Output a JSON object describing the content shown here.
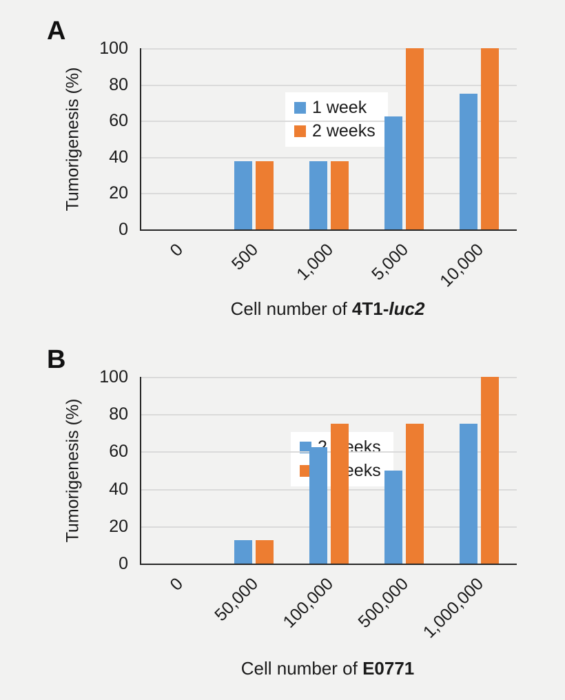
{
  "page": {
    "background_color": "#f2f2f1",
    "figure_type": "two-panel bar chart figure"
  },
  "colors": {
    "series_blue": "#5B9BD5",
    "series_orange": "#ED7D31",
    "gridline": "#dadada",
    "axis": "#262626",
    "legend_background": "#ffffff",
    "text": "#1a1a1a"
  },
  "chart_data": [
    {
      "type": "bar",
      "panel_label": "A",
      "categories": [
        "0",
        "500",
        "1,000",
        "5,000",
        "10,000"
      ],
      "series": [
        {
          "name": "1 week",
          "color": "#5B9BD5",
          "values": [
            0,
            37.5,
            37.5,
            62.5,
            75
          ]
        },
        {
          "name": "2 weeks",
          "color": "#ED7D31",
          "values": [
            0,
            37.5,
            37.5,
            100,
            100
          ]
        }
      ],
      "title": "",
      "ylabel": "Tumorigenesis (%)",
      "xlabel_parts": {
        "regular": "Cell number of ",
        "bold": "4T1-",
        "bold_italic": "luc2"
      },
      "ylim": [
        0,
        100
      ],
      "yticks": [
        0,
        20,
        40,
        60,
        80,
        100
      ],
      "grid": true,
      "legend_position": "upper-left-inside"
    },
    {
      "type": "bar",
      "panel_label": "B",
      "categories": [
        "0",
        "50,000",
        "100,000",
        "500,000",
        "1,000,000"
      ],
      "series": [
        {
          "name": "2 weeks",
          "color": "#5B9BD5",
          "values": [
            0,
            12.5,
            62.5,
            50,
            75
          ]
        },
        {
          "name": "3 weeks",
          "color": "#ED7D31",
          "values": [
            0,
            12.5,
            75,
            75,
            100
          ]
        }
      ],
      "title": "",
      "ylabel": "Tumorigenesis (%)",
      "xlabel_parts": {
        "regular": "Cell number of ",
        "bold": "E0771",
        "bold_italic": ""
      },
      "ylim": [
        0,
        100
      ],
      "yticks": [
        0,
        20,
        40,
        60,
        80,
        100
      ],
      "grid": true,
      "legend_position": "upper-left-inside"
    }
  ]
}
